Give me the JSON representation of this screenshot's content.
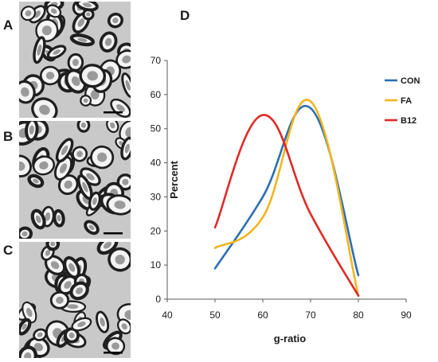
{
  "panels": {
    "a": "A",
    "b": "B",
    "c": "C",
    "d": "D"
  },
  "chart_data": {
    "type": "line",
    "title": "",
    "xlabel": "g-ratio",
    "ylabel": "Percent",
    "xlim": [
      40,
      90
    ],
    "ylim": [
      0,
      70
    ],
    "xticks": [
      40,
      50,
      60,
      70,
      80,
      90
    ],
    "yticks": [
      0,
      10,
      20,
      30,
      40,
      50,
      60,
      70
    ],
    "grid": false,
    "legend": "top-right",
    "smooth": true,
    "x": [
      50,
      60,
      70,
      80
    ],
    "series": [
      {
        "name": "CON",
        "color": "#2c6fb4",
        "values": [
          9,
          30,
          56,
          7
        ]
      },
      {
        "name": "FA",
        "color": "#f2b51f",
        "values": [
          15,
          24,
          58,
          1
        ]
      },
      {
        "name": "B12",
        "color": "#de2b27",
        "values": [
          21,
          54,
          25,
          1
        ]
      }
    ]
  }
}
